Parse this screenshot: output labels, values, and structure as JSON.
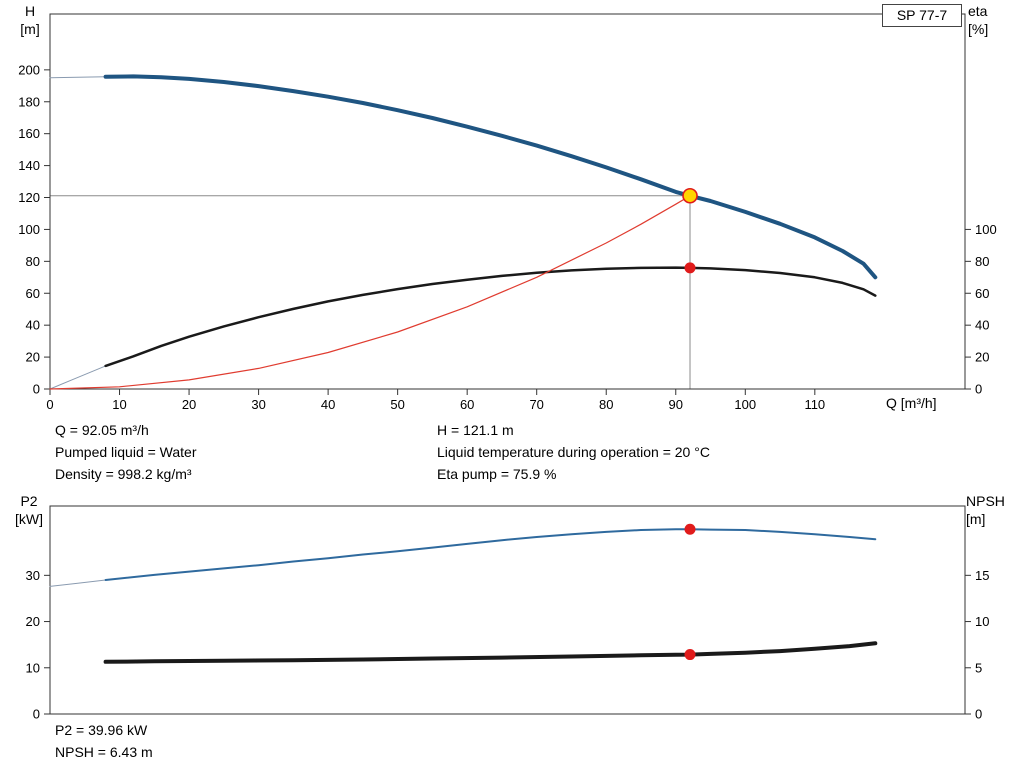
{
  "title_box": "SP 77-7",
  "annotations": {
    "top_col1": [
      "Q = 92.05 m³/h",
      "Pumped liquid = Water",
      "Density = 998.2 kg/m³"
    ],
    "top_col2": [
      "H = 121.1 m",
      "Liquid temperature during operation = 20 °C",
      "Eta pump = 75.9 %"
    ],
    "bottom": [
      "P2 = 39.96 kW",
      "NPSH = 6.43 m"
    ]
  },
  "colors": {
    "h_curve": "#1f5582",
    "eta_curve": "#1a1a1a",
    "system_curve": "#e03c30",
    "p2_curve": "#2f6a9e",
    "npsh_curve": "#1a1a1a",
    "lead": "#8a9bb0",
    "duty_fill": "#ffd500",
    "duty_stroke": "#e01b1b",
    "dot": "#e01b1b",
    "crosshair": "#8c8c8c",
    "axis": "#333333"
  },
  "chart_data": [
    {
      "type": "line",
      "name": "hq-eta-chart",
      "title": "SP 77-7 pump performance curve",
      "x_axis": {
        "label": "Q [m³/h]",
        "min": 0,
        "max": 131.6,
        "ticks": [
          0,
          10,
          20,
          30,
          40,
          50,
          60,
          70,
          80,
          90,
          100,
          110
        ]
      },
      "y_left": {
        "label": [
          "H",
          "[m]"
        ],
        "min": 0,
        "max": 235,
        "ticks": [
          0,
          20,
          40,
          60,
          80,
          100,
          120,
          140,
          160,
          180,
          200
        ]
      },
      "y_right": {
        "label": [
          "eta",
          "[%]"
        ],
        "min": 0,
        "max": 235,
        "ticks": [
          0,
          20,
          40,
          60,
          80,
          100
        ]
      },
      "series": [
        {
          "name": "h-curve-lead",
          "axis": "left",
          "color_key": "lead",
          "width": 1,
          "points": [
            [
              0,
              195
            ],
            [
              4,
              195.4
            ],
            [
              8,
              195.7
            ]
          ]
        },
        {
          "name": "h-curve",
          "axis": "left",
          "color_key": "h_curve",
          "width": 4,
          "points": [
            [
              8,
              195.7
            ],
            [
              12,
              195.9
            ],
            [
              16,
              195.4
            ],
            [
              20,
              194.3
            ],
            [
              25,
              192.4
            ],
            [
              30,
              189.8
            ],
            [
              35,
              186.7
            ],
            [
              40,
              183.2
            ],
            [
              45,
              179.2
            ],
            [
              50,
              174.7
            ],
            [
              55,
              169.8
            ],
            [
              60,
              164.4
            ],
            [
              65,
              158.7
            ],
            [
              70,
              152.5
            ],
            [
              75,
              145.9
            ],
            [
              80,
              138.9
            ],
            [
              85,
              131.4
            ],
            [
              90,
              123.5
            ],
            [
              92.05,
              121.1
            ],
            [
              95,
              117.8
            ],
            [
              100,
              111
            ],
            [
              105,
              103.5
            ],
            [
              110,
              95
            ],
            [
              114,
              86.5
            ],
            [
              117,
              78.5
            ],
            [
              118.7,
              70
            ]
          ]
        },
        {
          "name": "eta-curve-lead",
          "axis": "right",
          "color_key": "lead",
          "width": 1,
          "points": [
            [
              0,
              0
            ],
            [
              4,
              7.3
            ],
            [
              8,
              14.5
            ]
          ]
        },
        {
          "name": "eta-curve",
          "axis": "right",
          "color_key": "eta_curve",
          "width": 2.5,
          "points": [
            [
              8,
              14.5
            ],
            [
              12,
              20.5
            ],
            [
              16,
              27
            ],
            [
              20,
              32.8
            ],
            [
              25,
              39.2
            ],
            [
              30,
              45
            ],
            [
              35,
              50.2
            ],
            [
              40,
              54.9
            ],
            [
              45,
              59
            ],
            [
              50,
              62.6
            ],
            [
              55,
              65.8
            ],
            [
              60,
              68.5
            ],
            [
              65,
              70.9
            ],
            [
              70,
              72.8
            ],
            [
              75,
              74.3
            ],
            [
              80,
              75.4
            ],
            [
              85,
              75.9
            ],
            [
              90,
              76.1
            ],
            [
              92.05,
              75.9
            ],
            [
              95,
              75.6
            ],
            [
              100,
              74.5
            ],
            [
              105,
              72.7
            ],
            [
              110,
              70
            ],
            [
              114,
              66.5
            ],
            [
              117,
              62.5
            ],
            [
              118.7,
              58.5
            ]
          ]
        },
        {
          "name": "system-curve",
          "axis": "left",
          "color_key": "system_curve",
          "width": 1.2,
          "points": [
            [
              0,
              0
            ],
            [
              10,
              1.4
            ],
            [
              20,
              5.7
            ],
            [
              30,
              12.9
            ],
            [
              40,
              22.9
            ],
            [
              50,
              35.7
            ],
            [
              60,
              51.5
            ],
            [
              70,
              70
            ],
            [
              80,
              91.5
            ],
            [
              85,
              103.3
            ],
            [
              90,
              115.8
            ],
            [
              92.05,
              121.1
            ]
          ]
        }
      ],
      "markers": [
        {
          "name": "duty-point",
          "axis": "left",
          "q": 92.05,
          "v": 121.1,
          "r": 7,
          "fill_key": "duty_fill",
          "stroke_key": "duty_stroke"
        },
        {
          "name": "eta-point",
          "axis": "right",
          "q": 92.05,
          "v": 75.9,
          "r": 5.5,
          "fill_key": "dot"
        }
      ],
      "crosshair": {
        "q": 92.05,
        "v": 121.1
      },
      "duty_point": {
        "Q_m3h": 92.05,
        "H_m": 121.1,
        "eta_pct": 75.9
      }
    },
    {
      "type": "line",
      "name": "p2-npsh-chart",
      "title": "Power and NPSH curves",
      "x_axis": {
        "label": "",
        "min": 0,
        "max": 131.6,
        "ticks": []
      },
      "y_left": {
        "label": [
          "P2",
          "[kW]"
        ],
        "min": 0,
        "max": 45,
        "ticks": [
          0,
          10,
          20,
          30
        ]
      },
      "y_right": {
        "label": [
          "NPSH",
          "[m]"
        ],
        "min": 0,
        "max": 22.5,
        "ticks": [
          0,
          5,
          10,
          15
        ]
      },
      "series": [
        {
          "name": "p2-curve-lead",
          "axis": "left",
          "color_key": "lead",
          "width": 1,
          "points": [
            [
              0,
              27.6
            ],
            [
              4,
              28.3
            ],
            [
              8,
              29
            ]
          ]
        },
        {
          "name": "p2-curve",
          "axis": "left",
          "color_key": "p2_curve",
          "width": 2,
          "points": [
            [
              8,
              29
            ],
            [
              15,
              30.1
            ],
            [
              20,
              30.8
            ],
            [
              25,
              31.5
            ],
            [
              30,
              32.2
            ],
            [
              35,
              33
            ],
            [
              40,
              33.7
            ],
            [
              45,
              34.5
            ],
            [
              50,
              35.2
            ],
            [
              55,
              36
            ],
            [
              60,
              36.8
            ],
            [
              65,
              37.6
            ],
            [
              70,
              38.3
            ],
            [
              75,
              38.9
            ],
            [
              80,
              39.4
            ],
            [
              85,
              39.8
            ],
            [
              90,
              39.95
            ],
            [
              92.05,
              39.96
            ],
            [
              95,
              39.9
            ],
            [
              100,
              39.8
            ],
            [
              105,
              39.4
            ],
            [
              110,
              38.9
            ],
            [
              115,
              38.3
            ],
            [
              118.7,
              37.8
            ]
          ]
        },
        {
          "name": "npsh-curve",
          "axis": "right",
          "color_key": "npsh_curve",
          "width": 4,
          "points": [
            [
              8,
              5.65
            ],
            [
              15,
              5.7
            ],
            [
              25,
              5.75
            ],
            [
              35,
              5.82
            ],
            [
              45,
              5.9
            ],
            [
              55,
              6
            ],
            [
              65,
              6.1
            ],
            [
              75,
              6.22
            ],
            [
              85,
              6.35
            ],
            [
              90,
              6.41
            ],
            [
              92.05,
              6.43
            ],
            [
              95,
              6.5
            ],
            [
              100,
              6.63
            ],
            [
              105,
              6.8
            ],
            [
              110,
              7.05
            ],
            [
              115,
              7.35
            ],
            [
              118.7,
              7.65
            ]
          ]
        }
      ],
      "markers": [
        {
          "name": "p2-point",
          "axis": "left",
          "q": 92.05,
          "v": 39.96,
          "r": 5.5,
          "fill_key": "dot"
        },
        {
          "name": "npsh-point",
          "axis": "right",
          "q": 92.05,
          "v": 6.43,
          "r": 5.5,
          "fill_key": "dot"
        }
      ],
      "duty_point": {
        "P2_kW": 39.96,
        "NPSH_m": 6.43
      }
    }
  ]
}
